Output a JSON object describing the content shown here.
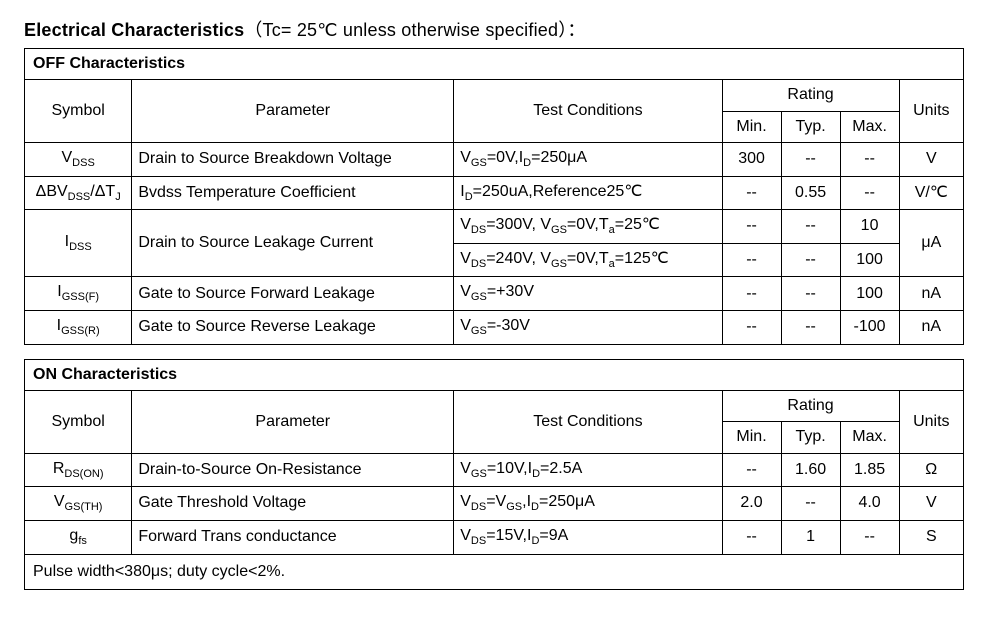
{
  "title": {
    "main": "Electrical Characteristics",
    "cond_prefix": "（Tc= 25℃  unless otherwise specified）",
    "colon": "："
  },
  "headers": {
    "symbol": "Symbol",
    "parameter": "Parameter",
    "test_conditions": "Test Conditions",
    "rating": "Rating",
    "min": "Min.",
    "typ": "Typ.",
    "max": "Max.",
    "units": "Units"
  },
  "off": {
    "section": "OFF Characteristics",
    "rows": {
      "vdss": {
        "sym_pre": "V",
        "sym_sub": "DSS",
        "param": "Drain to Source Breakdown Voltage",
        "cond_pre1": "V",
        "cond_sub1": "GS",
        "cond_mid1": "=0V,I",
        "cond_sub2": "D",
        "cond_post": "=250μA",
        "min": "300",
        "typ": "--",
        "max": "--",
        "unit": "V"
      },
      "dbv": {
        "sym_full": "ΔBV",
        "sym_sub1": "DSS",
        "sym_mid": "/ΔT",
        "sym_sub2": "J",
        "param": "Bvdss Temperature Coefficient",
        "cond_pre": "I",
        "cond_sub": "D",
        "cond_post": "=250uA,Reference25℃",
        "min": "--",
        "typ": "0.55",
        "max": "--",
        "unit": "V/℃"
      },
      "idss": {
        "sym_pre": "I",
        "sym_sub": "DSS",
        "param": "Drain to Source Leakage Current",
        "cond1_a": "V",
        "cond1_as": "DS",
        "cond1_b": "=300V, V",
        "cond1_bs": "GS",
        "cond1_c": "=0V,T",
        "cond1_cs": "a",
        "cond1_d": "=25℃",
        "cond2_a": "V",
        "cond2_as": "DS",
        "cond2_b": "=240V, V",
        "cond2_bs": "GS",
        "cond2_c": "=0V,T",
        "cond2_cs": "a",
        "cond2_d": "=125℃",
        "r1_min": "--",
        "r1_typ": "--",
        "r1_max": "10",
        "r2_min": "--",
        "r2_typ": "--",
        "r2_max": "100",
        "unit": "μA"
      },
      "igssf": {
        "sym_pre": "I",
        "sym_sub": "GSS(F)",
        "param": "Gate to Source Forward Leakage",
        "cond_pre": "V",
        "cond_sub": "GS",
        "cond_post": "=+30V",
        "min": "--",
        "typ": "--",
        "max": "100",
        "unit": "nA"
      },
      "igssr": {
        "sym_pre": "I",
        "sym_sub": "GSS(R)",
        "param": "Gate to Source Reverse Leakage",
        "cond_pre": "V",
        "cond_sub": "GS",
        "cond_post": "=-30V",
        "min": "--",
        "typ": "--",
        "max": "-100",
        "unit": "nA"
      }
    }
  },
  "on": {
    "section": "ON Characteristics",
    "rows": {
      "rds": {
        "sym_pre": "R",
        "sym_sub": "DS(ON)",
        "param": "Drain-to-Source On-Resistance",
        "cond_a": "V",
        "cond_as": "GS",
        "cond_b": "=10V,I",
        "cond_bs": "D",
        "cond_c": "=2.5A",
        "min": "--",
        "typ": "1.60",
        "max": "1.85",
        "unit": "Ω"
      },
      "vgsth": {
        "sym_pre": "V",
        "sym_sub": "GS(TH)",
        "param": "Gate Threshold Voltage",
        "cond_a": "V",
        "cond_as": "DS",
        "cond_b": "=V",
        "cond_bs": "GS",
        "cond_c": ",I",
        "cond_cs": "D",
        "cond_d": "=250μA",
        "min": "2.0",
        "typ": "--",
        "max": "4.0",
        "unit": "V"
      },
      "gfs": {
        "sym_pre": "g",
        "sym_sub": "fs",
        "param": "Forward Trans conductance",
        "cond_a": "V",
        "cond_as": "DS",
        "cond_b": "=15V,I",
        "cond_bs": "D",
        "cond_c": "=9A",
        "min": "--",
        "typ": "1",
        "max": "--",
        "unit": "S"
      }
    },
    "footnote": "Pulse width<380μs; duty cycle<2%."
  }
}
